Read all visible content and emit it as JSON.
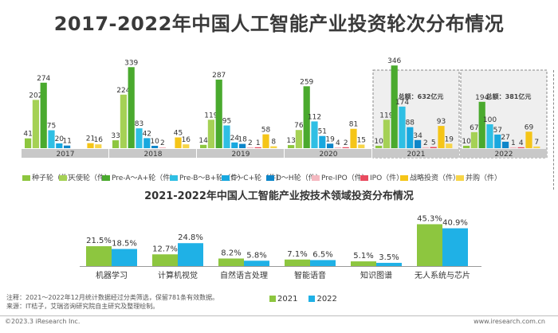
{
  "title": "2017-2022年中国人工智能产业投资轮次分布情况",
  "subtitle": "2021-2022年中国人工智能产业按技术领域投资分布情况",
  "chart_data": [
    {
      "type": "bar",
      "categories": [
        "2017",
        "2018",
        "2019",
        "2020",
        "2021",
        "2022"
      ],
      "series": [
        {
          "name": "种子轮（件）",
          "color": "#8dc63f",
          "values": [
            41,
            33,
            14,
            13,
            10,
            10
          ]
        },
        {
          "name": "天使轮（件）",
          "color": "#a5d155",
          "values": [
            202,
            224,
            119,
            76,
            119,
            67
          ]
        },
        {
          "name": "Pre-A～A+轮（件）",
          "color": "#4aaa2e",
          "values": [
            274,
            339,
            287,
            259,
            346,
            194
          ]
        },
        {
          "name": "Pre-B～B+轮（件）",
          "color": "#2fbfe4",
          "values": [
            75,
            83,
            95,
            112,
            174,
            100
          ]
        },
        {
          "name": "C～C+轮（件）",
          "color": "#18a8df",
          "values": [
            20,
            42,
            24,
            51,
            88,
            57
          ]
        },
        {
          "name": "D～H轮（件）",
          "color": "#0e86c9",
          "values": [
            11,
            10,
            18,
            19,
            34,
            27
          ]
        },
        {
          "name": "Pre-IPO（件）",
          "color": "#f4b8c0",
          "values": [
            null,
            2,
            2,
            4,
            2,
            1
          ]
        },
        {
          "name": "IPO（件）",
          "color": "#e94b5f",
          "values": [
            null,
            null,
            1,
            2,
            5,
            4
          ]
        },
        {
          "name": "战略投资（件）",
          "color": "#f5c518",
          "values": [
            21,
            45,
            58,
            81,
            93,
            69
          ]
        },
        {
          "name": "并购（件）",
          "color": "#f7d548",
          "values": [
            16,
            16,
            8,
            15,
            19,
            7
          ]
        }
      ],
      "annotations": [
        {
          "category": "2021",
          "text": "总额：632亿元"
        },
        {
          "category": "2022",
          "text": "总额：381亿元"
        }
      ]
    },
    {
      "type": "bar",
      "categories": [
        "机器学习",
        "计算机视觉",
        "自然语言处理",
        "智能语音",
        "知识图谱",
        "无人系统与芯片"
      ],
      "series": [
        {
          "name": "2021",
          "color": "#8dc63f",
          "values": [
            21.5,
            12.7,
            8.2,
            7.1,
            5.1,
            45.3
          ]
        },
        {
          "name": "2022",
          "color": "#1fb1e6",
          "values": [
            18.5,
            24.8,
            5.8,
            6.5,
            3.5,
            40.9
          ]
        }
      ],
      "unit": "%"
    }
  ],
  "notes": [
    "注释：2021～2022年12月统计数据经过分类筛选，保留781条有效数据。",
    "来源：IT桔子，艾瑞咨询研究院自主研究及整理绘制。"
  ],
  "copyright": "©2023.3 iResearch Inc.",
  "website": "www.iresearch.com.cn"
}
